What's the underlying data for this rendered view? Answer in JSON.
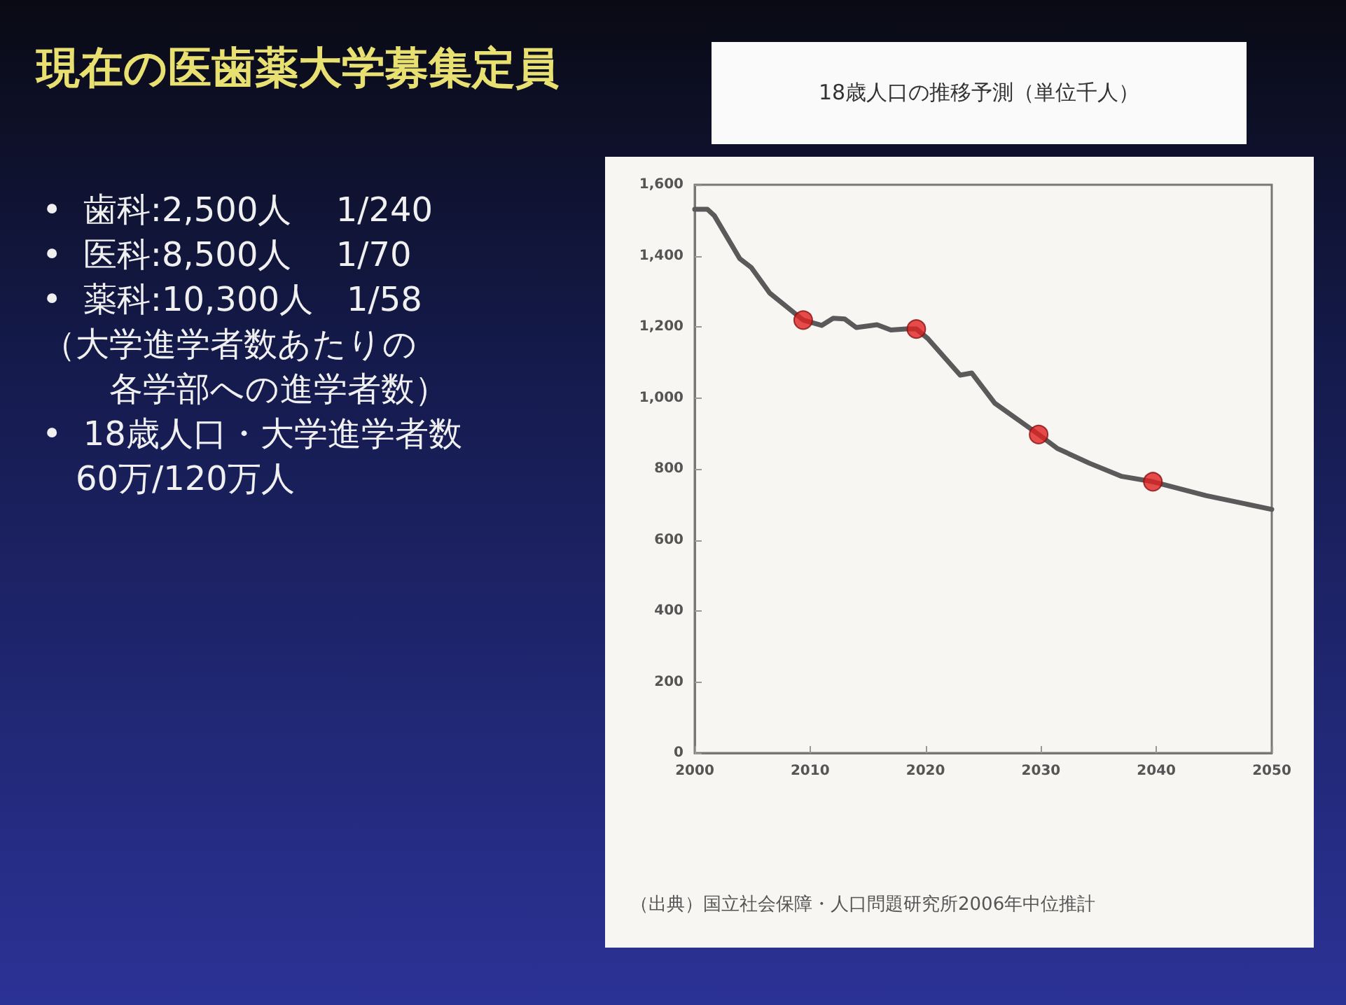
{
  "chart_data": {
    "type": "line",
    "title": "18歳人口の推移予測（単位千人）",
    "annotations": [
      "現在の医歯薬大学募集定員",
      "•  歯科:2,500人　 1/240",
      "•  医科:8,500人　 1/70",
      "•  薬科:10,300人　1/58",
      "（大学進学者数あたりの",
      "　　各学部への進学者数）",
      "•  18歳人口・大学進学者数",
      "　60万/120万人",
      "（出典）国立社会保障・人口問題研究所2006年中位推計"
    ],
    "series": [
      {
        "color": "#5a5a5a",
        "marker": "none",
        "x": [
          2000,
          2001.1,
          2001.7,
          2003.9,
          2004.9,
          2006.5,
          2009.4,
          2011,
          2012,
          2013,
          2014,
          2015.8,
          2017,
          2018.3,
          2019.2,
          2020.2,
          2023,
          2024,
          2026,
          2029.8,
          2031.4,
          2034.2,
          2037,
          2039.7,
          2044.3,
          2050
        ],
        "values": [
          1531,
          1531,
          1513,
          1392,
          1367,
          1295,
          1219,
          1204,
          1224,
          1222,
          1198,
          1206,
          1191,
          1194,
          1194,
          1167,
          1064,
          1070,
          985,
          897,
          858,
          816,
          779,
          764,
          725,
          686
        ]
      },
      {
        "type": "scatter",
        "color": "#e02020",
        "marker": "circle",
        "x": [
          2009.4,
          2019.2,
          2029.8,
          2039.7
        ],
        "values": [
          1219,
          1194,
          897,
          764
        ]
      }
    ],
    "xlim": [
      2000,
      2050
    ],
    "xticks": [
      2000,
      2010,
      2020,
      2030,
      2040,
      2050
    ],
    "ylim": [
      0,
      1600
    ],
    "yticks": [
      0,
      200,
      400,
      600,
      800,
      {
        "value": 1000,
        "label": "1,000"
      },
      {
        "value": 1200,
        "label": "1,200"
      },
      {
        "value": 1400,
        "label": "1,400"
      },
      {
        "value": 1600,
        "label": "1,600"
      }
    ],
    "grid": false
  }
}
